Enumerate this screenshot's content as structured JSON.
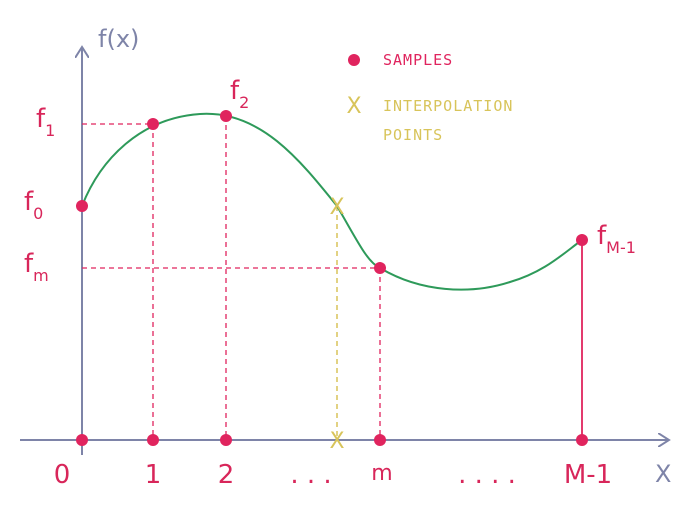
{
  "axes": {
    "y_label": "f(x)",
    "x_label": "X"
  },
  "legend": {
    "samples": "SAMPLES",
    "interp_marker": "X",
    "interp_line1": "INTERPOLATION",
    "interp_line2": "POINTS"
  },
  "sample_labels": {
    "f1": "f",
    "f1_sub": "1",
    "f2": "f",
    "f2_sub": "2",
    "f0": "f",
    "f0_sub": "0",
    "fm": "f",
    "fm_sub": "m",
    "fM": "f",
    "fM_sub": "M-1"
  },
  "x_ticks": {
    "t0": "0",
    "t1": "1",
    "t2": "2",
    "dots1": ". . .",
    "tm": "m",
    "dots2": ". . . .",
    "tM": "M-1"
  },
  "interp_marker": "X",
  "colors": {
    "axis": "#7e84a8",
    "curve": "#2e9a5a",
    "sample": "#e0245e",
    "label": "#d8265a",
    "interpolation": "#d8c45a"
  }
}
